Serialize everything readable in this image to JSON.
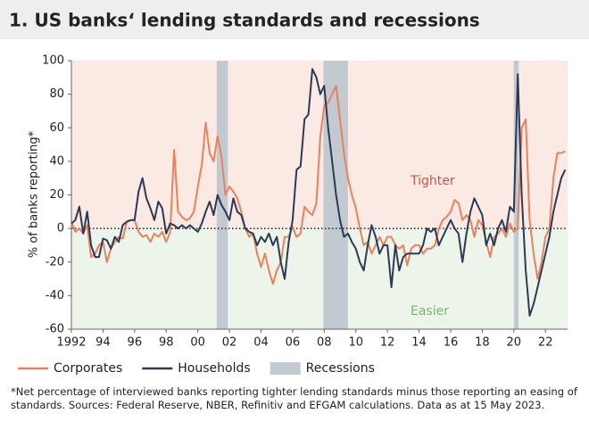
{
  "chart_data": {
    "type": "line",
    "title": "1. US banks‘ lending standards and recessions",
    "y_label": "% of banks reporting*",
    "footnote": "*Net percentage of interviewed banks reporting tighter lending standards minus those reporting an easing of standards. Sources: Federal Reserve, NBER, Refinitiv and EFGAM calculations. Data as at 15 May 2023.",
    "annotations": [
      {
        "text": "Tighter",
        "color": "#c4574a"
      },
      {
        "text": "Easier",
        "color": "#7fb272"
      }
    ],
    "xlim": [
      1992,
      2023.4
    ],
    "xticks": [
      1992,
      {
        "value": 1994,
        "label": "94"
      },
      {
        "value": 1996,
        "label": "96"
      },
      {
        "value": 1998,
        "label": "98"
      },
      {
        "value": 2000,
        "label": "00"
      },
      {
        "value": 2002,
        "label": "02"
      },
      {
        "value": 2004,
        "label": "04"
      },
      {
        "value": 2006,
        "label": "06"
      },
      {
        "value": 2008,
        "label": "08"
      },
      {
        "value": 2010,
        "label": "10"
      },
      {
        "value": 2012,
        "label": "12"
      },
      {
        "value": 2014,
        "label": "14"
      },
      {
        "value": 2016,
        "label": "16"
      },
      {
        "value": 2018,
        "label": "18"
      },
      {
        "value": 2020,
        "label": "20"
      },
      {
        "value": 2022,
        "label": "22"
      }
    ],
    "ylim": [
      -60,
      100
    ],
    "yticks": [
      -60,
      -40,
      -20,
      0,
      20,
      40,
      60,
      80,
      100
    ],
    "recessions": {
      "name": "Recessions",
      "color": "#c3c9d1",
      "spans": [
        [
          2001.2,
          2001.9
        ],
        [
          2007.95,
          2009.5
        ],
        [
          2020.0,
          2020.3
        ]
      ]
    },
    "x": [
      1992,
      1992.25,
      1992.5,
      1992.75,
      1993,
      1993.25,
      1993.5,
      1993.75,
      1994,
      1994.25,
      1994.5,
      1994.75,
      1995,
      1995.25,
      1995.5,
      1995.75,
      1996,
      1996.25,
      1996.5,
      1996.75,
      1997,
      1997.25,
      1997.5,
      1997.75,
      1998,
      1998.25,
      1998.5,
      1998.75,
      1999,
      1999.25,
      1999.5,
      1999.75,
      2000,
      2000.25,
      2000.5,
      2000.75,
      2001,
      2001.25,
      2001.5,
      2001.75,
      2002,
      2002.25,
      2002.5,
      2002.75,
      2003,
      2003.25,
      2003.5,
      2003.75,
      2004,
      2004.25,
      2004.5,
      2004.75,
      2005,
      2005.25,
      2005.5,
      2005.75,
      2006,
      2006.25,
      2006.5,
      2006.75,
      2007,
      2007.25,
      2007.5,
      2007.75,
      2008,
      2008.25,
      2008.5,
      2008.75,
      2009,
      2009.25,
      2009.5,
      2009.75,
      2010,
      2010.25,
      2010.5,
      2010.75,
      2011,
      2011.25,
      2011.5,
      2011.75,
      2012,
      2012.25,
      2012.5,
      2012.75,
      2013,
      2013.25,
      2013.5,
      2013.75,
      2014,
      2014.25,
      2014.5,
      2014.75,
      2015,
      2015.25,
      2015.5,
      2015.75,
      2016,
      2016.25,
      2016.5,
      2016.75,
      2017,
      2017.25,
      2017.5,
      2017.75,
      2018,
      2018.25,
      2018.5,
      2018.75,
      2019,
      2019.25,
      2019.5,
      2019.75,
      2020,
      2020.25,
      2020.5,
      2020.75,
      2021,
      2021.25,
      2021.5,
      2021.75,
      2022,
      2022.25,
      2022.5,
      2022.75,
      2023,
      2023.25
    ],
    "series": [
      {
        "name": "Corporates",
        "color": "#e8825e",
        "values": [
          4,
          -2,
          0,
          -3,
          2,
          -17,
          -15,
          -10,
          -8,
          -20,
          -12,
          -8,
          -5,
          -6,
          4,
          5,
          5,
          -2,
          -5,
          -4,
          -8,
          -3,
          -5,
          -2,
          -8,
          -2,
          47,
          10,
          7,
          5,
          6,
          10,
          25,
          38,
          63,
          45,
          40,
          55,
          43,
          20,
          25,
          22,
          18,
          10,
          0,
          -5,
          -3,
          -15,
          -23,
          -15,
          -25,
          -33,
          -25,
          -20,
          -5,
          -5,
          1,
          -5,
          -3,
          13,
          10,
          8,
          15,
          55,
          73,
          75,
          80,
          85,
          65,
          45,
          30,
          20,
          12,
          0,
          -10,
          -8,
          -15,
          -10,
          -5,
          -10,
          -5,
          -5,
          -10,
          -12,
          -10,
          -22,
          -12,
          -10,
          -10,
          -15,
          -12,
          -12,
          -10,
          0,
          5,
          7,
          10,
          17,
          15,
          5,
          8,
          5,
          -5,
          5,
          2,
          -8,
          -17,
          -5,
          -3,
          0,
          -5,
          3,
          -2,
          0,
          60,
          65,
          5,
          -15,
          -30,
          -20,
          -5,
          0,
          30,
          45,
          45,
          46
        ]
      },
      {
        "name": "Households",
        "color": "#2b3a55",
        "values": [
          3,
          5,
          13,
          -3,
          10,
          -10,
          -17,
          -17,
          -6,
          -7,
          -12,
          -5,
          -8,
          2,
          4,
          5,
          5,
          22,
          30,
          18,
          12,
          5,
          16,
          12,
          -3,
          3,
          2,
          0,
          2,
          0,
          2,
          0,
          -2,
          3,
          10,
          16,
          8,
          20,
          14,
          10,
          5,
          18,
          10,
          8,
          0,
          -2,
          -3,
          -10,
          -5,
          -8,
          -3,
          -10,
          -5,
          -20,
          -30,
          -8,
          5,
          35,
          37,
          65,
          68,
          95,
          90,
          80,
          85,
          60,
          40,
          20,
          5,
          -5,
          -3,
          -8,
          -12,
          -20,
          -25,
          -10,
          2,
          -5,
          -15,
          -10,
          -10,
          -35,
          -10,
          -25,
          -17,
          -15,
          -15,
          -15,
          -15,
          -10,
          0,
          -2,
          0,
          -10,
          -5,
          0,
          5,
          0,
          -3,
          -20,
          -3,
          10,
          18,
          13,
          8,
          -10,
          -3,
          -10,
          0,
          5,
          -2,
          13,
          10,
          92,
          20,
          -25,
          -52,
          -45,
          -35,
          -25,
          -15,
          -5,
          10,
          20,
          30,
          35
        ]
      }
    ]
  }
}
